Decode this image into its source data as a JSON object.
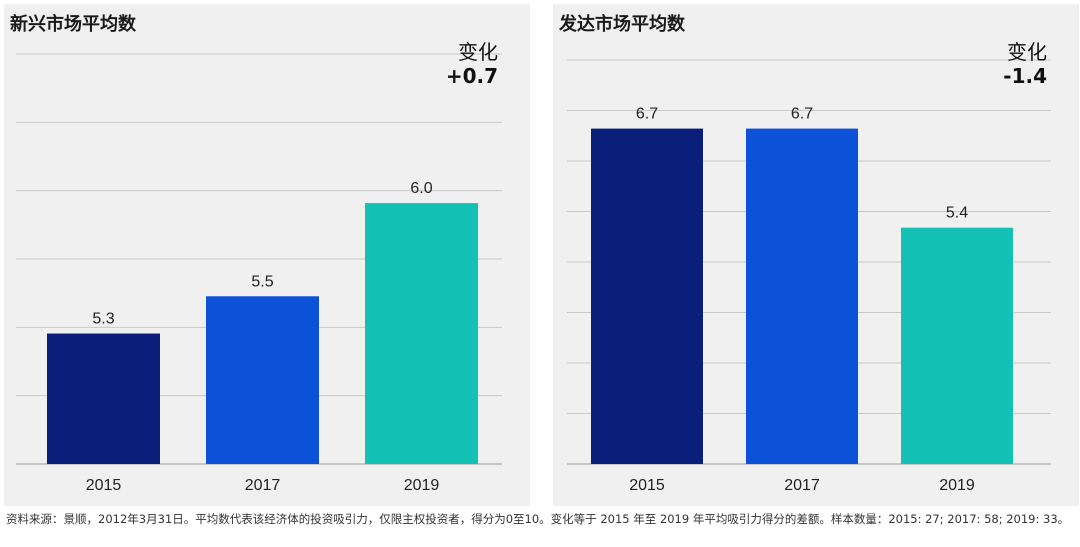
{
  "colors": {
    "bar_2015": "#0a1f7a",
    "bar_2017": "#0b52d8",
    "bar_2019": "#13c2b5",
    "panel_bg": "#f0f0f0"
  },
  "chart_data": [
    {
      "type": "bar",
      "title": "新兴市场平均数",
      "change_label": "变化",
      "change_value": "+0.7",
      "categories": [
        "2015",
        "2017",
        "2019"
      ],
      "values": [
        5.3,
        5.5,
        6.0
      ],
      "value_labels": [
        "5.3",
        "5.5",
        "6.0"
      ],
      "ylim": [
        4.6,
        6.8
      ],
      "grid": true,
      "gridline_count": 6
    },
    {
      "type": "bar",
      "title": "发达市场平均数",
      "change_label": "变化",
      "change_value": "-1.4",
      "categories": [
        "2015",
        "2017",
        "2019"
      ],
      "values": [
        6.7,
        6.7,
        5.4
      ],
      "value_labels": [
        "6.7",
        "6.7",
        "5.4"
      ],
      "ylim": [
        2.3,
        7.6
      ],
      "grid": true,
      "gridline_count": 8
    }
  ],
  "footnote": "资料来源：景顺，2012年3月31日。平均数代表该经济体的投资吸引力，仅限主权投资者，得分为0至10。变化等于 2015 年至 2019 年平均吸引力得分的差额。样本数量：2015: 27; 2017: 58; 2019: 33。"
}
